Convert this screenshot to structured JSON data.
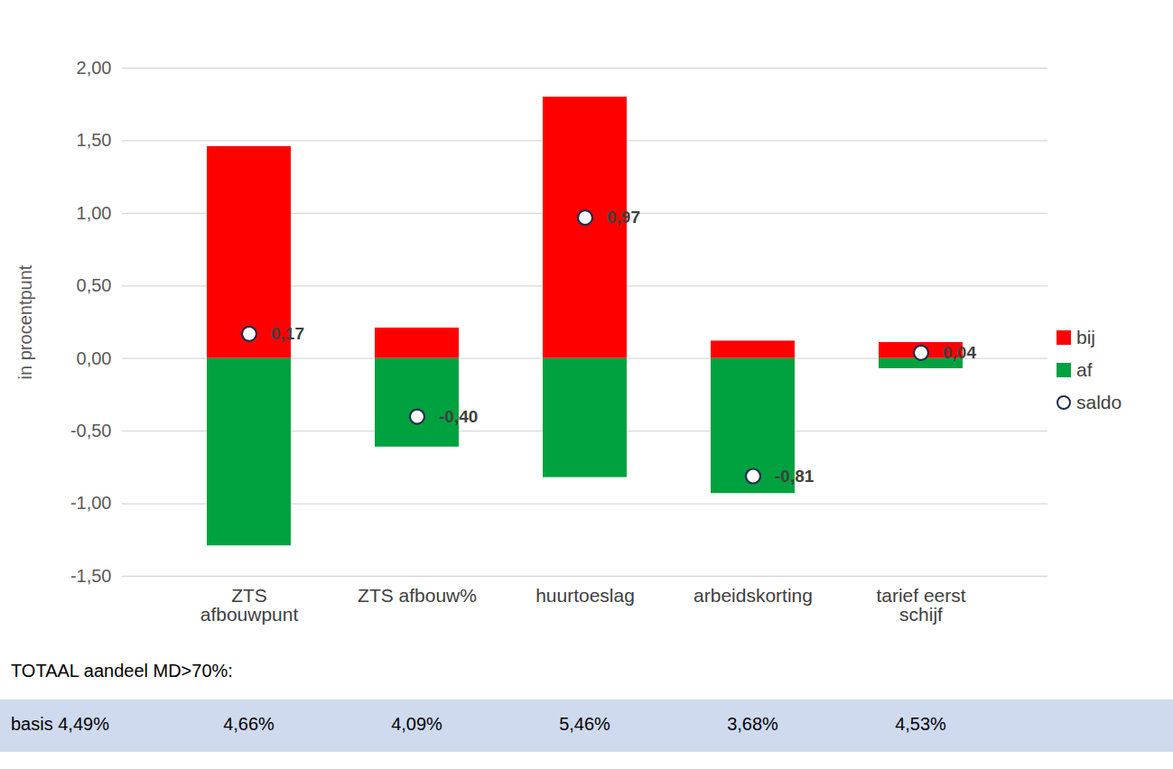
{
  "chart_data": {
    "type": "bar",
    "y_label": "in procentpunt",
    "categories": [
      "ZTS afbouwpunt",
      "ZTS afbouw%",
      "huurtoeslag",
      "arbeidskorting",
      "tarief eerst schijf"
    ],
    "series": [
      {
        "name": "bij",
        "color": "#ff0000",
        "values": [
          1.46,
          0.21,
          1.8,
          0.12,
          0.11
        ]
      },
      {
        "name": "af",
        "color": "#00a23f",
        "values": [
          -1.29,
          -0.61,
          -0.82,
          -0.93,
          -0.07
        ]
      },
      {
        "name": "saldo",
        "type": "scatter",
        "marker": "circle",
        "color": "#1f2d4f",
        "values": [
          0.17,
          -0.4,
          0.97,
          -0.81,
          0.04
        ],
        "value_labels": [
          "0,17",
          "-0,40",
          "0,97",
          "-0,81",
          "0,04"
        ]
      }
    ],
    "stacked": true,
    "data_labels": true,
    "legend": "right",
    "grid": true,
    "ylim": [
      -1.5,
      2.0
    ],
    "yticks": [
      {
        "value": -1.5,
        "label": "-1,50"
      },
      {
        "value": -1.0,
        "label": "-1,00"
      },
      {
        "value": -0.5,
        "label": "-0,50"
      },
      {
        "value": 0,
        "label": "0,00"
      },
      {
        "value": 0.5,
        "label": "0,50"
      },
      {
        "value": 1.0,
        "label": "1,00"
      },
      {
        "value": 1.5,
        "label": "1,50"
      },
      {
        "value": 2.0,
        "label": "2,00"
      }
    ],
    "totals": {
      "title": "TOTAAL aandeel MD>70%:",
      "basis": "basis 4,49%",
      "values": [
        "4,66%",
        "4,09%",
        "5,46%",
        "3,68%",
        "4,53%"
      ]
    }
  }
}
